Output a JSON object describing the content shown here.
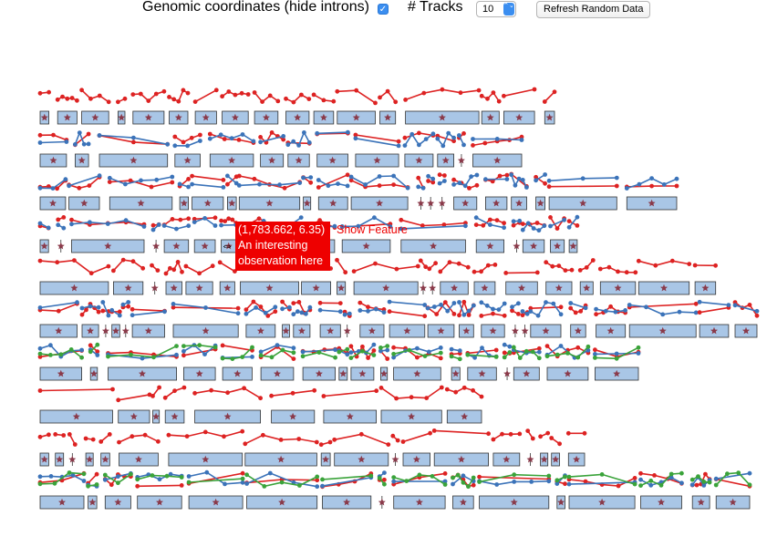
{
  "toolbar": {
    "genomic_label": "Genomic coordinates (hide introns)",
    "genomic_checked": true,
    "check_glyph": "✓",
    "tracks_label": "# Tracks",
    "tracks_value": "10",
    "select_arrow_glyph": "⌃⌄",
    "refresh_label": "Refresh Random Data"
  },
  "tooltip": {
    "coords": "(1,783.662, 6.35)",
    "line1": "An interesting",
    "line2": "observation here",
    "show_feature": "Show Feature",
    "cursor_glyph": "⇔"
  },
  "colors": {
    "exon_fill": "#a9c6e6",
    "exon_stroke": "#333",
    "star": "#8a3a4a",
    "series_red": "#dd2222",
    "series_blue": "#3b73b9",
    "series_green": "#3aa33a",
    "tooltip_bg": "#ee0000"
  },
  "track_count": 10
}
